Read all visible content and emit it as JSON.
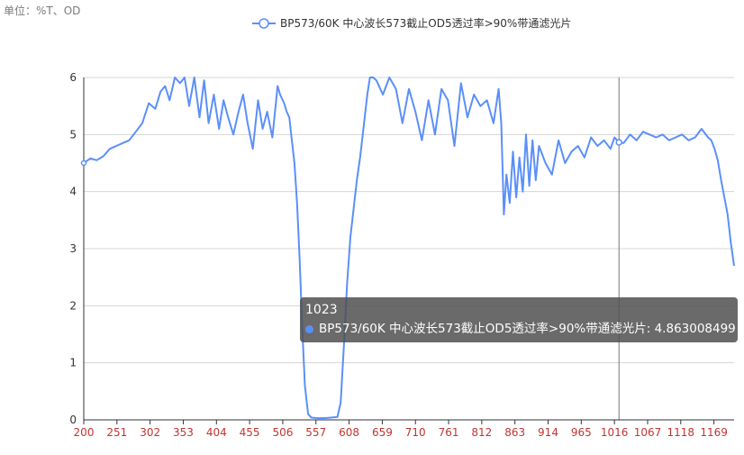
{
  "header": {
    "unit_label": "单位：%T、OD"
  },
  "colors": {
    "series": "#5b8ff9",
    "x_tick_text": "#c23531",
    "y_tick_text": "#333333",
    "grid": "#d6d6d6",
    "axis": "#333333"
  },
  "tooltip": {
    "title": "1023",
    "series_name": "BP573/60K 中心波长573截止OD5透过率>90%带通滤光片",
    "value": "4.863008499"
  },
  "chart_data": {
    "type": "line",
    "title": "",
    "xlabel": "",
    "ylabel": "",
    "ylim": [
      0,
      6
    ],
    "xlim": [
      200,
      1200
    ],
    "grid": true,
    "legend": "top-center",
    "y_ticks": [
      "0",
      "1",
      "2",
      "3",
      "4",
      "5",
      "6"
    ],
    "x_ticks": [
      "200",
      "251",
      "302",
      "353",
      "404",
      "455",
      "506",
      "557",
      "608",
      "659",
      "710",
      "761",
      "812",
      "863",
      "914",
      "965",
      "1016",
      "1067",
      "1118",
      "1169"
    ],
    "crosshair_x": 1023,
    "series": [
      {
        "name": "BP573/60K 中心波长573截止OD5透过率>90%带通滤光片",
        "x": [
          200,
          210,
          220,
          230,
          240,
          250,
          260,
          270,
          280,
          290,
          300,
          310,
          318,
          325,
          332,
          340,
          348,
          355,
          362,
          370,
          378,
          385,
          392,
          400,
          408,
          415,
          422,
          430,
          438,
          445,
          452,
          460,
          468,
          475,
          482,
          490,
          498,
          502,
          508,
          512,
          516,
          520,
          524,
          528,
          532,
          536,
          540,
          545,
          550,
          560,
          570,
          580,
          590,
          595,
          600,
          605,
          610,
          615,
          620,
          625,
          628,
          632,
          636,
          640,
          645,
          650,
          660,
          670,
          680,
          690,
          700,
          710,
          720,
          730,
          740,
          750,
          760,
          770,
          780,
          790,
          800,
          810,
          820,
          830,
          838,
          842,
          846,
          850,
          855,
          860,
          865,
          870,
          875,
          880,
          885,
          890,
          895,
          900,
          910,
          920,
          930,
          940,
          950,
          960,
          970,
          980,
          990,
          1000,
          1010,
          1016,
          1023,
          1030,
          1040,
          1050,
          1060,
          1070,
          1080,
          1090,
          1100,
          1110,
          1120,
          1130,
          1140,
          1150,
          1160,
          1165,
          1170,
          1175,
          1180,
          1185,
          1190,
          1195,
          1200
        ],
        "values": [
          4.5,
          4.58,
          4.55,
          4.62,
          4.75,
          4.8,
          4.85,
          4.9,
          5.05,
          5.2,
          5.55,
          5.45,
          5.75,
          5.85,
          5.6,
          6.0,
          5.9,
          6.0,
          5.5,
          6.0,
          5.3,
          5.95,
          5.2,
          5.7,
          5.1,
          5.6,
          5.3,
          5.0,
          5.4,
          5.7,
          5.2,
          4.75,
          5.6,
          5.1,
          5.4,
          4.95,
          5.85,
          5.7,
          5.55,
          5.4,
          5.3,
          4.9,
          4.5,
          3.8,
          2.8,
          1.6,
          0.6,
          0.1,
          0.04,
          0.03,
          0.03,
          0.04,
          0.05,
          0.3,
          1.3,
          2.4,
          3.2,
          3.7,
          4.2,
          4.6,
          4.9,
          5.3,
          5.7,
          6.0,
          6.0,
          5.95,
          5.7,
          6.0,
          5.8,
          5.2,
          5.8,
          5.4,
          4.9,
          5.6,
          5.0,
          5.8,
          5.6,
          4.8,
          5.9,
          5.3,
          5.7,
          5.5,
          5.6,
          5.2,
          5.8,
          5.2,
          3.6,
          4.3,
          3.8,
          4.7,
          3.9,
          4.6,
          4.0,
          5.0,
          4.1,
          4.9,
          4.2,
          4.8,
          4.5,
          4.3,
          4.9,
          4.5,
          4.7,
          4.8,
          4.6,
          4.95,
          4.8,
          4.9,
          4.75,
          4.95,
          4.863,
          4.85,
          5.0,
          4.9,
          5.05,
          5.0,
          4.95,
          5.0,
          4.9,
          4.95,
          5.0,
          4.9,
          4.95,
          5.1,
          4.95,
          4.9,
          4.75,
          4.55,
          4.2,
          3.9,
          3.6,
          3.1,
          2.7
        ]
      }
    ]
  }
}
